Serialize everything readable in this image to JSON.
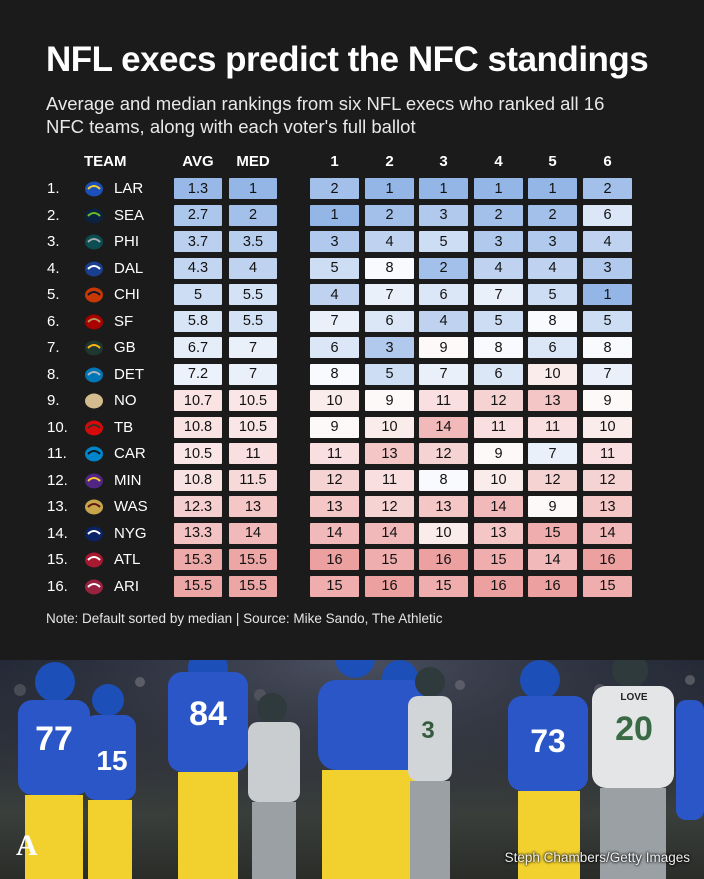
{
  "title": "NFL execs predict the NFC standings",
  "subtitle": "Average and median rankings from six NFL execs who ranked all 16 NFC teams, along with each voter's full ballot",
  "note": "Note: Default sorted by median | Source: Mike Sando, The Athletic",
  "photo": {
    "credit": "Steph Chambers/Getty Images",
    "logo_letter": "A",
    "jersey_numbers": [
      "77",
      "15",
      "84",
      "73",
      "20",
      "3"
    ],
    "nameplate": "LOVE"
  },
  "colors": {
    "background": "#1b1b1b",
    "low_rank": "#9fbde6",
    "mid_rank": "#ffffff",
    "high_rank": "#eda4a4"
  },
  "chart_data": {
    "type": "table",
    "columns": [
      "TEAM",
      "AVG",
      "MED",
      "1",
      "2",
      "3",
      "4",
      "5",
      "6"
    ],
    "rows": [
      {
        "rank": "1.",
        "team": "LAR",
        "logo": "rams-logo",
        "avg": "1.3",
        "med": "1",
        "ballots": [
          2,
          1,
          1,
          1,
          1,
          2
        ]
      },
      {
        "rank": "2.",
        "team": "SEA",
        "logo": "seahawks-logo",
        "avg": "2.7",
        "med": "2",
        "ballots": [
          1,
          2,
          3,
          2,
          2,
          6
        ]
      },
      {
        "rank": "3.",
        "team": "PHI",
        "logo": "eagles-logo",
        "avg": "3.7",
        "med": "3.5",
        "ballots": [
          3,
          4,
          5,
          3,
          3,
          4
        ]
      },
      {
        "rank": "4.",
        "team": "DAL",
        "logo": "cowboys-logo",
        "avg": "4.3",
        "med": "4",
        "ballots": [
          5,
          8,
          2,
          4,
          4,
          3
        ]
      },
      {
        "rank": "5.",
        "team": "CHI",
        "logo": "bears-logo",
        "avg": "5",
        "med": "5.5",
        "ballots": [
          4,
          7,
          6,
          7,
          5,
          1
        ]
      },
      {
        "rank": "6.",
        "team": "SF",
        "logo": "49ers-logo",
        "avg": "5.8",
        "med": "5.5",
        "ballots": [
          7,
          6,
          4,
          5,
          8,
          5
        ]
      },
      {
        "rank": "7.",
        "team": "GB",
        "logo": "packers-logo",
        "avg": "6.7",
        "med": "7",
        "ballots": [
          6,
          3,
          9,
          8,
          6,
          8
        ]
      },
      {
        "rank": "8.",
        "team": "DET",
        "logo": "lions-logo",
        "avg": "7.2",
        "med": "7",
        "ballots": [
          8,
          5,
          7,
          6,
          10,
          7
        ]
      },
      {
        "rank": "9.",
        "team": "NO",
        "logo": "saints-logo",
        "avg": "10.7",
        "med": "10.5",
        "ballots": [
          10,
          9,
          11,
          12,
          13,
          9
        ]
      },
      {
        "rank": "10.",
        "team": "TB",
        "logo": "buccaneers-logo",
        "avg": "10.8",
        "med": "10.5",
        "ballots": [
          9,
          10,
          14,
          11,
          11,
          10
        ]
      },
      {
        "rank": "11.",
        "team": "CAR",
        "logo": "panthers-logo",
        "avg": "10.5",
        "med": "11",
        "ballots": [
          11,
          13,
          12,
          9,
          7,
          11
        ]
      },
      {
        "rank": "12.",
        "team": "MIN",
        "logo": "vikings-logo",
        "avg": "10.8",
        "med": "11.5",
        "ballots": [
          12,
          11,
          8,
          10,
          12,
          12
        ]
      },
      {
        "rank": "13.",
        "team": "WAS",
        "logo": "commanders-logo",
        "avg": "12.3",
        "med": "13",
        "ballots": [
          13,
          12,
          13,
          14,
          9,
          13
        ]
      },
      {
        "rank": "14.",
        "team": "NYG",
        "logo": "giants-logo",
        "avg": "13.3",
        "med": "14",
        "ballots": [
          14,
          14,
          10,
          13,
          15,
          14
        ]
      },
      {
        "rank": "15.",
        "team": "ATL",
        "logo": "falcons-logo",
        "avg": "15.3",
        "med": "15.5",
        "ballots": [
          16,
          15,
          16,
          15,
          14,
          16
        ]
      },
      {
        "rank": "16.",
        "team": "ARI",
        "logo": "cardinals-logo",
        "avg": "15.5",
        "med": "15.5",
        "ballots": [
          15,
          16,
          15,
          16,
          16,
          15
        ]
      }
    ]
  }
}
